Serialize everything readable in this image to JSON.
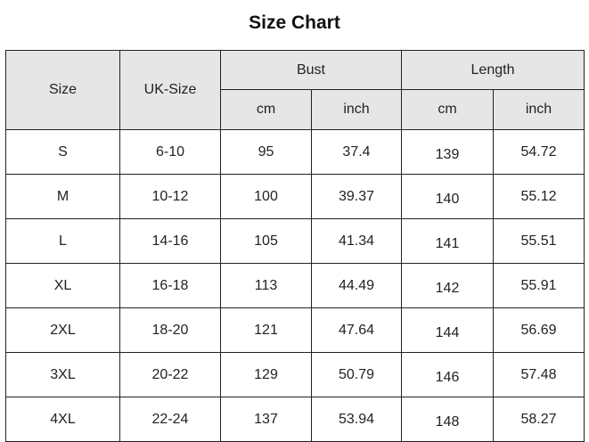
{
  "title": "Size Chart",
  "headers": {
    "size": "Size",
    "uk_size": "UK-Size",
    "bust": "Bust",
    "length": "Length",
    "cm": "cm",
    "inch": "inch"
  },
  "rows": [
    [
      "S",
      "6-10",
      "95",
      "37.4",
      "139",
      "54.72"
    ],
    [
      "M",
      "10-12",
      "100",
      "39.37",
      "140",
      "55.12"
    ],
    [
      "L",
      "14-16",
      "105",
      "41.34",
      "141",
      "55.51"
    ],
    [
      "XL",
      "16-18",
      "113",
      "44.49",
      "142",
      "55.91"
    ],
    [
      "2XL",
      "18-20",
      "121",
      "47.64",
      "144",
      "56.69"
    ],
    [
      "3XL",
      "20-22",
      "129",
      "50.79",
      "146",
      "57.48"
    ],
    [
      "4XL",
      "22-24",
      "137",
      "53.94",
      "148",
      "58.27"
    ]
  ]
}
